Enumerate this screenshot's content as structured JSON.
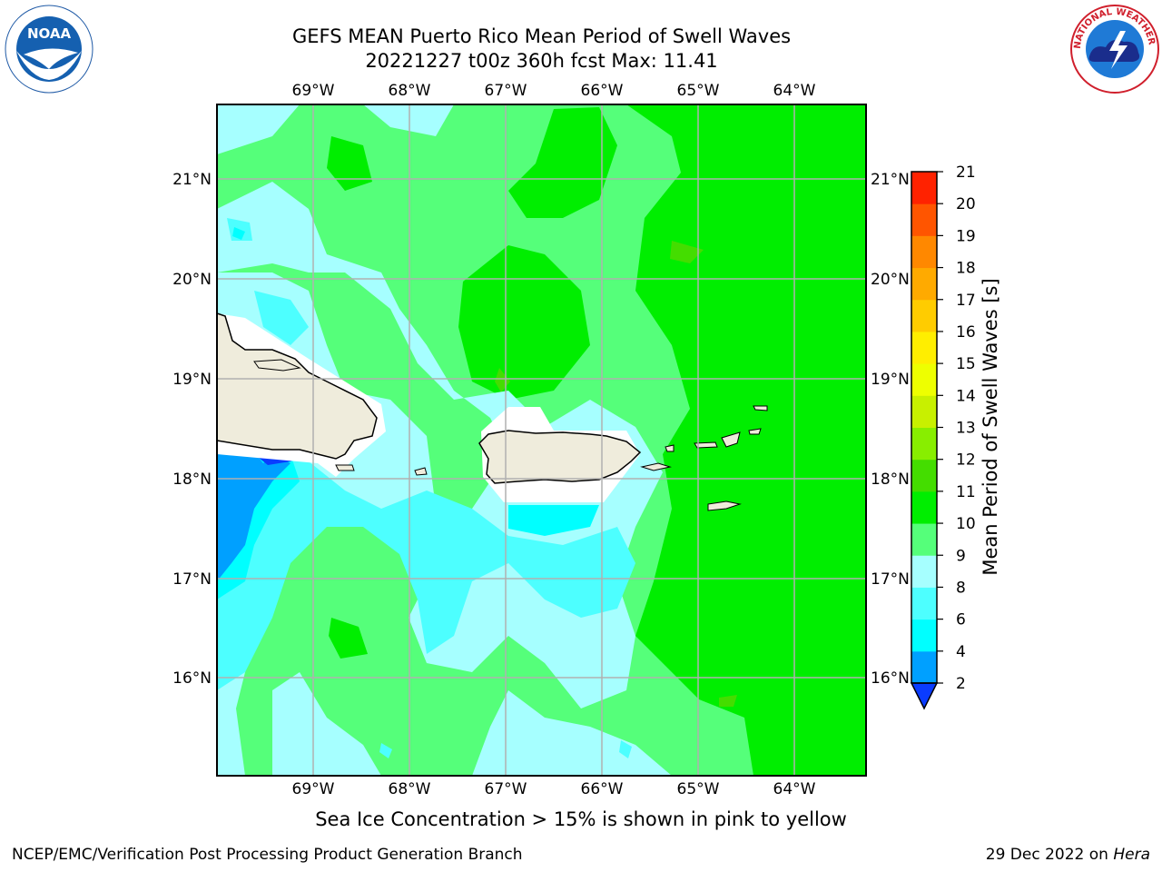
{
  "header": {
    "title_line1": "GEFS MEAN Puerto Rico Mean Period of Swell Waves",
    "title_line2": "20221227 t00z 360h fcst   Max: 11.41"
  },
  "map": {
    "lon_ticks": [
      "69°W",
      "68°W",
      "67°W",
      "66°W",
      "65°W",
      "64°W"
    ],
    "lat_ticks": [
      "21°N",
      "20°N",
      "19°N",
      "18°N",
      "17°N",
      "16°N"
    ],
    "land_color": "#efecdc",
    "grid_color": "#b0b0b0"
  },
  "colorbar": {
    "label": "Mean Period of Swell Waves [s]",
    "ticks": [
      "2",
      "4",
      "6",
      "8",
      "9",
      "10",
      "11",
      "12",
      "13",
      "14",
      "15",
      "16",
      "17",
      "18",
      "19",
      "20",
      "21"
    ],
    "colors": [
      "#0a3cff",
      "#00a0ff",
      "#00ffff",
      "#4dffff",
      "#a6ffff",
      "#55ff7a",
      "#00ee00",
      "#44dd00",
      "#88ee00",
      "#c8f000",
      "#eeff00",
      "#ffee00",
      "#ffcc00",
      "#ffaa00",
      "#ff8800",
      "#ff5500",
      "#ff2200",
      "#ff0000"
    ]
  },
  "logos": {
    "noaa_text": "NOAA",
    "nws_text": "NATIONAL WEATHER SERVICE"
  },
  "subtitle": "Sea Ice Concentration > 15% is shown in pink to yellow",
  "footer": {
    "left": "NCEP/EMC/Verification Post Processing Product Generation Branch",
    "right_prefix": "29 Dec 2022 on ",
    "right_host": "Hera"
  }
}
